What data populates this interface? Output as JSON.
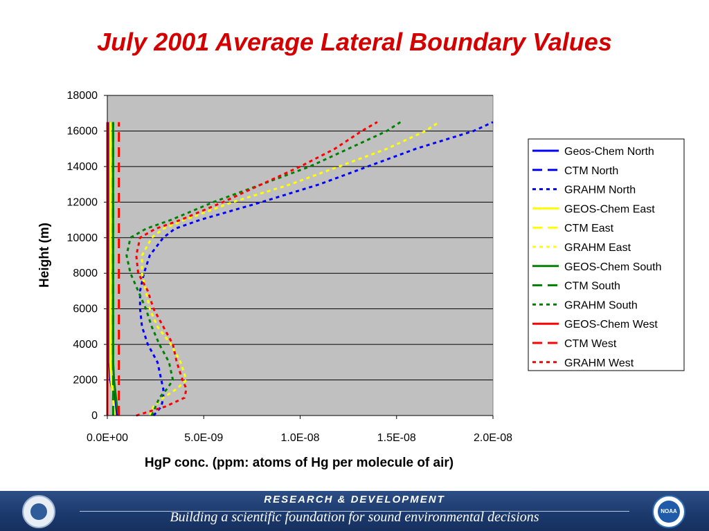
{
  "slide_title": "July 2001 Average Lateral Boundary Values",
  "chart_data": {
    "type": "line",
    "xlabel": "HgP conc. (ppm: atoms of Hg per molecule of air)",
    "ylabel": "Height (m)",
    "xlim": [
      0,
      2e-08
    ],
    "ylim": [
      0,
      18000
    ],
    "x_ticks": [
      "0.0E+00",
      "5.0E-09",
      "1.0E-08",
      "1.5E-08",
      "2.0E-08"
    ],
    "y_ticks": [
      "0",
      "2000",
      "4000",
      "6000",
      "8000",
      "10000",
      "12000",
      "14000",
      "16000",
      "18000"
    ],
    "grid": "horizontal",
    "legend_position": "right",
    "heights": [
      0,
      500,
      1000,
      1500,
      2000,
      3000,
      4000,
      5000,
      6000,
      7000,
      8000,
      9000,
      10000,
      10500,
      11000,
      12000,
      13000,
      14000,
      15000,
      16000,
      16500
    ],
    "series": [
      {
        "name": "Geos-Chem North",
        "color": "#0000ff",
        "dash": "solid",
        "values": [
          5e-10,
          4e-10,
          3.5e-10,
          2.5e-10,
          1.5e-10,
          1e-10,
          1e-10,
          1e-10,
          1e-10,
          1e-10,
          1e-10,
          1e-10,
          1e-10,
          1e-10,
          1e-10,
          1e-10,
          1e-10,
          1e-10,
          1e-10,
          1e-10,
          1e-10
        ]
      },
      {
        "name": "CTM North",
        "color": "#0000ff",
        "dash": "long",
        "values": [
          5e-10,
          4.5e-10,
          4e-10,
          3.5e-10,
          3e-10,
          3e-10,
          3e-10,
          3e-10,
          3e-10,
          3e-10,
          3e-10,
          3e-10,
          3e-10,
          3e-10,
          3e-10,
          3e-10,
          3e-10,
          3e-10,
          3e-10,
          3e-10,
          3e-10
        ]
      },
      {
        "name": "GRAHM North",
        "color": "#0000ff",
        "dash": "dot",
        "values": [
          2.4e-09,
          2.8e-09,
          2.9e-09,
          2.9e-09,
          2.8e-09,
          2.6e-09,
          2.1e-09,
          1.8e-09,
          1.7e-09,
          1.7e-09,
          1.9e-09,
          2.2e-09,
          2.9e-09,
          3.5e-09,
          4.8e-09,
          8e-09,
          1.1e-08,
          1.35e-08,
          1.6e-08,
          1.9e-08,
          2e-08
        ]
      },
      {
        "name": "GEOS-Chem East",
        "color": "#ffff00",
        "dash": "solid",
        "values": [
          4e-10,
          3.5e-10,
          3e-10,
          2.5e-10,
          2e-10,
          1.5e-10,
          1.5e-10,
          1.5e-10,
          1.5e-10,
          1.5e-10,
          1.5e-10,
          1.5e-10,
          1.5e-10,
          1.5e-10,
          1.5e-10,
          1.5e-10,
          1.5e-10,
          1.5e-10,
          1.5e-10,
          1.5e-10,
          1.5e-10
        ]
      },
      {
        "name": "CTM East",
        "color": "#ffff00",
        "dash": "long",
        "values": [
          6e-10,
          6e-10,
          6e-10,
          6e-10,
          6e-10,
          6e-10,
          6e-10,
          6e-10,
          6e-10,
          6e-10,
          6e-10,
          6e-10,
          6e-10,
          6e-10,
          6e-10,
          6e-10,
          6e-10,
          6e-10,
          6e-10,
          6e-10,
          6e-10
        ]
      },
      {
        "name": "GRAHM East",
        "color": "#ffff00",
        "dash": "dot",
        "values": [
          2.2e-09,
          2.4e-09,
          2.9e-09,
          3.6e-09,
          4.1e-09,
          3.8e-09,
          3.3e-09,
          2.6e-09,
          2.2e-09,
          2e-09,
          1.8e-09,
          1.8e-09,
          2.3e-09,
          2.9e-09,
          4e-09,
          6.5e-09,
          9.5e-09,
          1.2e-08,
          1.45e-08,
          1.65e-08,
          1.72e-08
        ]
      },
      {
        "name": "GEOS-Chem South",
        "color": "#008000",
        "dash": "solid",
        "values": [
          6e-10,
          5e-10,
          4.5e-10,
          4e-10,
          3.5e-10,
          3e-10,
          3e-10,
          3e-10,
          3e-10,
          3e-10,
          3e-10,
          3e-10,
          3e-10,
          3e-10,
          3e-10,
          3e-10,
          3e-10,
          3e-10,
          3e-10,
          3e-10,
          3e-10
        ]
      },
      {
        "name": "CTM South",
        "color": "#008000",
        "dash": "long",
        "values": [
          3e-10,
          3e-10,
          3e-10,
          3e-10,
          3e-10,
          3e-10,
          3e-10,
          3e-10,
          3e-10,
          3e-10,
          3e-10,
          3e-10,
          3e-10,
          3e-10,
          3e-10,
          3e-10,
          3e-10,
          3e-10,
          3e-10,
          3e-10,
          3e-10
        ]
      },
      {
        "name": "GRAHM South",
        "color": "#008000",
        "dash": "dot",
        "values": [
          2.3e-09,
          2.5e-09,
          2.7e-09,
          3.1e-09,
          3.4e-09,
          3.2e-09,
          2.7e-09,
          2.3e-09,
          2e-09,
          1.6e-09,
          1.2e-09,
          1e-09,
          1.2e-09,
          2e-09,
          3.3e-09,
          5.5e-09,
          8e-09,
          1.05e-08,
          1.25e-08,
          1.45e-08,
          1.52e-08
        ]
      },
      {
        "name": "GEOS-Chem West",
        "color": "#ff0000",
        "dash": "solid",
        "values": [
          0,
          0,
          0,
          0,
          0,
          0,
          0,
          0,
          0,
          0,
          0,
          0,
          0,
          0,
          0,
          0,
          0,
          0,
          0,
          0,
          0
        ]
      },
      {
        "name": "CTM West",
        "color": "#ff0000",
        "dash": "long",
        "values": [
          6e-10,
          6e-10,
          6e-10,
          6e-10,
          6e-10,
          6e-10,
          6e-10,
          6e-10,
          6e-10,
          6e-10,
          6e-10,
          6e-10,
          6e-10,
          6e-10,
          6e-10,
          6e-10,
          6e-10,
          6e-10,
          6e-10,
          6e-10,
          6e-10
        ]
      },
      {
        "name": "GRAHM West",
        "color": "#ff0000",
        "dash": "dot",
        "values": [
          1.5e-09,
          3e-09,
          4e-09,
          4.1e-09,
          3.9e-09,
          3.6e-09,
          3.4e-09,
          2.9e-09,
          2.4e-09,
          2.1e-09,
          1.6e-09,
          1.5e-09,
          1.7e-09,
          2.5e-09,
          3.8e-09,
          6e-09,
          8e-09,
          1e-08,
          1.18e-08,
          1.32e-08,
          1.4e-08
        ]
      }
    ]
  },
  "footer": {
    "heading": "RESEARCH & DEVELOPMENT",
    "tagline": "Building a scientific foundation for sound environmental decisions",
    "left_logo": "epa-seal-icon",
    "right_logo": "noaa-seal-icon",
    "noaa_text": "NOAA"
  }
}
